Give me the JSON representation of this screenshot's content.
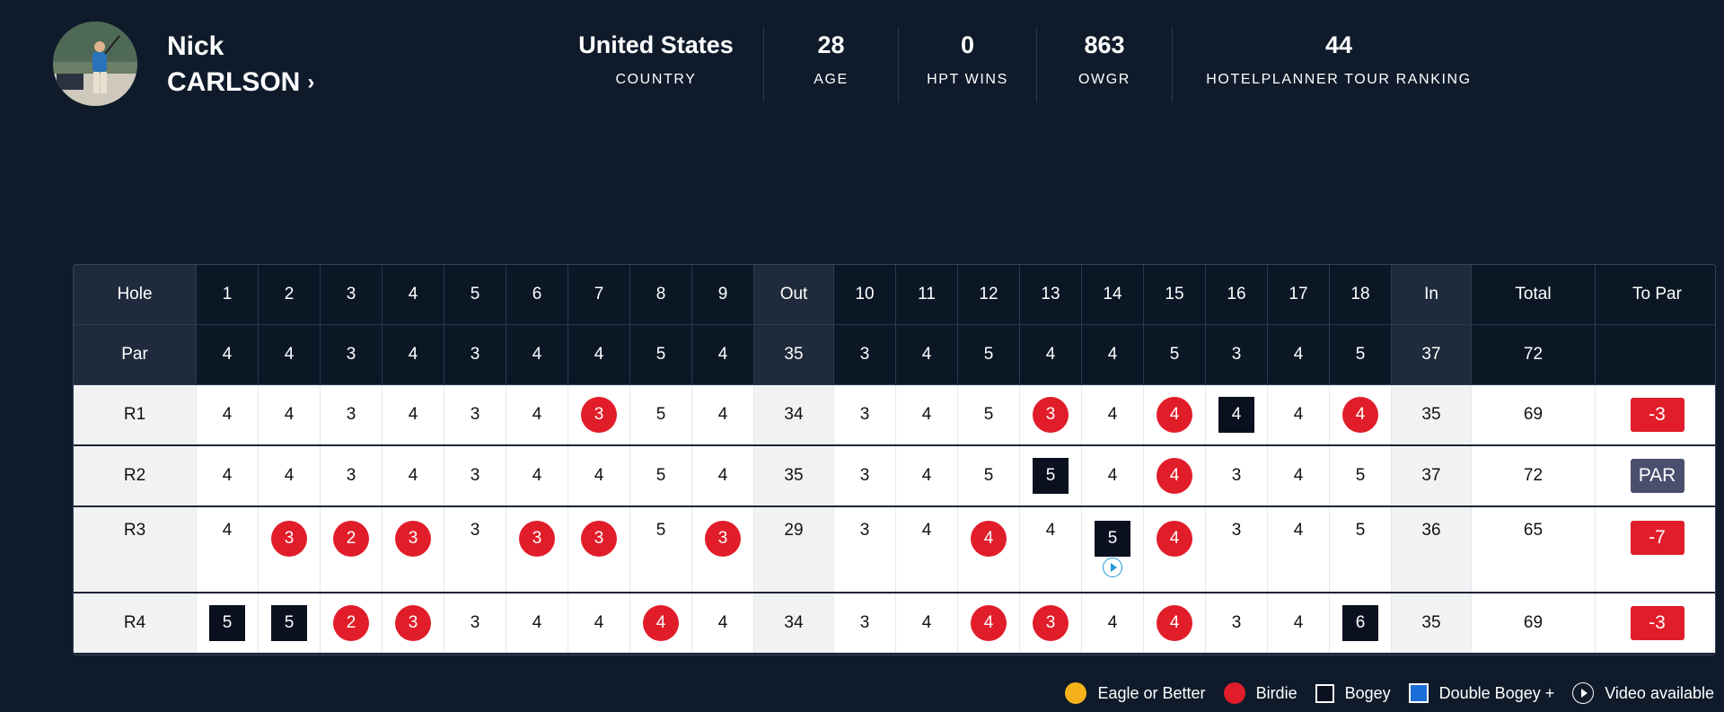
{
  "player": {
    "first_name": "Nick",
    "last_name": "CARLSON",
    "chevron": "›",
    "photo_icon": "player-photo"
  },
  "stats": [
    {
      "value": "United States",
      "label": "COUNTRY"
    },
    {
      "value": "28",
      "label": "AGE"
    },
    {
      "value": "0",
      "label": "HPT WINS"
    },
    {
      "value": "863",
      "label": "OWGR"
    },
    {
      "value": "44",
      "label": "HOTELPLANNER TOUR RANKING"
    }
  ],
  "scorecard": {
    "columns": [
      "Hole",
      "1",
      "2",
      "3",
      "4",
      "5",
      "6",
      "7",
      "8",
      "9",
      "Out",
      "10",
      "11",
      "12",
      "13",
      "14",
      "15",
      "16",
      "17",
      "18",
      "In",
      "Total",
      "To Par"
    ],
    "par": [
      "Par",
      "4",
      "4",
      "3",
      "4",
      "3",
      "4",
      "4",
      "5",
      "4",
      "35",
      "3",
      "4",
      "5",
      "4",
      "4",
      "5",
      "3",
      "4",
      "5",
      "37",
      "72",
      ""
    ],
    "rounds": [
      {
        "label": "R1",
        "scores": [
          "4",
          "4",
          "3",
          "4",
          "3",
          "4",
          "3",
          "5",
          "4",
          "34",
          "3",
          "4",
          "5",
          "3",
          "4",
          "4",
          "4",
          "4",
          "4",
          "35",
          "69"
        ],
        "marks": [
          "",
          "",
          "",
          "",
          "",
          "",
          "birdie",
          "",
          "",
          "",
          "",
          "",
          "",
          "birdie",
          "",
          "birdie",
          "bogey",
          "",
          "birdie",
          "",
          ""
        ],
        "to_par": "-3",
        "to_par_type": "under"
      },
      {
        "label": "R2",
        "scores": [
          "4",
          "4",
          "3",
          "4",
          "3",
          "4",
          "4",
          "5",
          "4",
          "35",
          "3",
          "4",
          "5",
          "5",
          "4",
          "4",
          "3",
          "4",
          "5",
          "37",
          "72"
        ],
        "marks": [
          "",
          "",
          "",
          "",
          "",
          "",
          "",
          "",
          "",
          "",
          "",
          "",
          "",
          "bogey",
          "",
          "birdie",
          "",
          "",
          "",
          "",
          ""
        ],
        "to_par": "PAR",
        "to_par_type": "even"
      },
      {
        "label": "R3",
        "scores": [
          "4",
          "3",
          "2",
          "3",
          "3",
          "3",
          "3",
          "5",
          "3",
          "29",
          "3",
          "4",
          "4",
          "4",
          "5",
          "4",
          "3",
          "4",
          "5",
          "36",
          "65"
        ],
        "marks": [
          "",
          "birdie",
          "birdie",
          "birdie",
          "",
          "birdie",
          "birdie",
          "",
          "birdie",
          "",
          "",
          "",
          "birdie",
          "",
          "bogey",
          "birdie",
          "",
          "",
          "",
          "",
          ""
        ],
        "video_hole_index": 15,
        "to_par": "-7",
        "to_par_type": "under"
      },
      {
        "label": "R4",
        "scores": [
          "5",
          "5",
          "2",
          "3",
          "3",
          "4",
          "4",
          "4",
          "4",
          "34",
          "3",
          "4",
          "4",
          "3",
          "4",
          "4",
          "3",
          "4",
          "6",
          "35",
          "69"
        ],
        "marks": [
          "bogey",
          "bogey",
          "birdie",
          "birdie",
          "",
          "",
          "",
          "birdie",
          "",
          "",
          "",
          "",
          "birdie",
          "birdie",
          "",
          "birdie",
          "",
          "",
          "bogey",
          "",
          ""
        ],
        "to_par": "-3",
        "to_par_type": "under"
      }
    ]
  },
  "legend": [
    {
      "type": "eagle",
      "label": "Eagle or Better",
      "icon": "eagle-dot"
    },
    {
      "type": "birdie",
      "label": "Birdie",
      "icon": "birdie-dot"
    },
    {
      "type": "bogey",
      "label": "Bogey",
      "icon": "bogey-square"
    },
    {
      "type": "dbl",
      "label": "Double Bogey +",
      "icon": "double-bogey-square"
    },
    {
      "type": "vid",
      "label": "Video available",
      "icon": "play-circle-icon"
    }
  ],
  "colors": {
    "background": "#0f1b2b",
    "birdie": "#e11d2a",
    "eagle": "#f5b21a",
    "bogey": "#0b1020",
    "double_bogey": "#1a6ed8",
    "even_badge": "#4b4f6e",
    "video": "#1f9bd6"
  }
}
